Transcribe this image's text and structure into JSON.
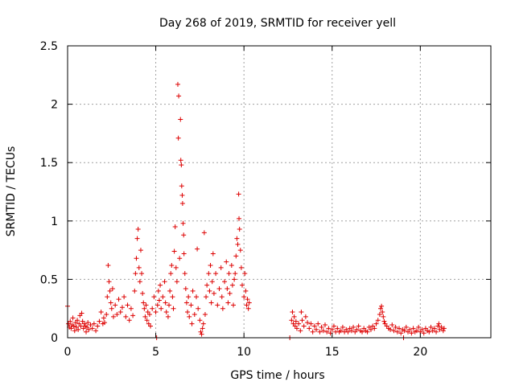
{
  "chart_data": {
    "type": "scatter",
    "title": "Day 268 of 2019, SRMTID for receiver yell",
    "xlabel": "GPS time / hours",
    "ylabel": "SRMTID / TECUs",
    "xlim": [
      0,
      24
    ],
    "ylim": [
      0,
      2.5
    ],
    "xticks": [
      0,
      5,
      10,
      15,
      20
    ],
    "yticks": [
      0,
      0.5,
      1,
      1.5,
      2,
      2.5
    ],
    "x_tick_labels": [
      "0",
      "5",
      "10",
      "15",
      "20"
    ],
    "y_tick_labels": [
      "0",
      "0.5",
      "1",
      "1.5",
      "2",
      "2.5"
    ],
    "grid": true,
    "marker": "+",
    "series": [
      {
        "name": "SRMTID",
        "color": "#dd0000",
        "points": [
          [
            0.0,
            0.27
          ],
          [
            0.05,
            0.12
          ],
          [
            0.1,
            0.09
          ],
          [
            0.15,
            0.14
          ],
          [
            0.2,
            0.08
          ],
          [
            0.25,
            0.11
          ],
          [
            0.3,
            0.17
          ],
          [
            0.35,
            0.1
          ],
          [
            0.4,
            0.06
          ],
          [
            0.45,
            0.13
          ],
          [
            0.5,
            0.09
          ],
          [
            0.55,
            0.15
          ],
          [
            0.6,
            0.07
          ],
          [
            0.65,
            0.12
          ],
          [
            0.7,
            0.19
          ],
          [
            0.75,
            0.1
          ],
          [
            0.8,
            0.21
          ],
          [
            0.85,
            0.14
          ],
          [
            0.9,
            0.08
          ],
          [
            0.95,
            0.12
          ],
          [
            1.0,
            0.1
          ],
          [
            1.05,
            0.05
          ],
          [
            1.1,
            0.09
          ],
          [
            1.15,
            0.13
          ],
          [
            1.2,
            0.07
          ],
          [
            1.3,
            0.11
          ],
          [
            1.4,
            0.08
          ],
          [
            1.5,
            0.12
          ],
          [
            1.6,
            0.06
          ],
          [
            1.7,
            0.1
          ],
          [
            1.8,
            0.14
          ],
          [
            1.9,
            0.22
          ],
          [
            2.0,
            0.12
          ],
          [
            2.05,
            0.17
          ],
          [
            2.1,
            0.13
          ],
          [
            2.2,
            0.2
          ],
          [
            2.25,
            0.35
          ],
          [
            2.3,
            0.62
          ],
          [
            2.35,
            0.48
          ],
          [
            2.4,
            0.4
          ],
          [
            2.45,
            0.3
          ],
          [
            2.5,
            0.25
          ],
          [
            2.55,
            0.42
          ],
          [
            2.6,
            0.18
          ],
          [
            2.7,
            0.28
          ],
          [
            2.8,
            0.2
          ],
          [
            2.9,
            0.33
          ],
          [
            3.0,
            0.22
          ],
          [
            3.1,
            0.26
          ],
          [
            3.2,
            0.35
          ],
          [
            3.3,
            0.18
          ],
          [
            3.4,
            0.28
          ],
          [
            3.5,
            0.15
          ],
          [
            3.6,
            0.25
          ],
          [
            3.7,
            0.19
          ],
          [
            3.8,
            0.4
          ],
          [
            3.85,
            0.55
          ],
          [
            3.9,
            0.68
          ],
          [
            3.95,
            0.85
          ],
          [
            4.0,
            0.93
          ],
          [
            4.05,
            0.6
          ],
          [
            4.1,
            0.48
          ],
          [
            4.15,
            0.75
          ],
          [
            4.2,
            0.55
          ],
          [
            4.25,
            0.38
          ],
          [
            4.3,
            0.3
          ],
          [
            4.35,
            0.25
          ],
          [
            4.4,
            0.18
          ],
          [
            4.45,
            0.28
          ],
          [
            4.5,
            0.15
          ],
          [
            4.55,
            0.22
          ],
          [
            4.6,
            0.12
          ],
          [
            4.65,
            0.2
          ],
          [
            4.7,
            0.1
          ],
          [
            4.8,
            0.25
          ],
          [
            4.9,
            0.35
          ],
          [
            5.0,
            0.22
          ],
          [
            5.05,
            0.0
          ],
          [
            5.1,
            0.28
          ],
          [
            5.15,
            0.4
          ],
          [
            5.2,
            0.32
          ],
          [
            5.25,
            0.45
          ],
          [
            5.3,
            0.25
          ],
          [
            5.4,
            0.35
          ],
          [
            5.5,
            0.48
          ],
          [
            5.55,
            0.3
          ],
          [
            5.6,
            0.22
          ],
          [
            5.7,
            0.18
          ],
          [
            5.75,
            0.28
          ],
          [
            5.8,
            0.4
          ],
          [
            5.85,
            0.55
          ],
          [
            5.9,
            0.62
          ],
          [
            5.95,
            0.35
          ],
          [
            6.0,
            0.25
          ],
          [
            6.05,
            0.74
          ],
          [
            6.1,
            0.95
          ],
          [
            6.15,
            0.6
          ],
          [
            6.2,
            0.48
          ],
          [
            6.25,
            2.17
          ],
          [
            6.3,
            2.07
          ],
          [
            6.28,
            1.71
          ],
          [
            6.35,
            0.68
          ],
          [
            6.4,
            1.87
          ],
          [
            6.42,
            1.52
          ],
          [
            6.45,
            1.48
          ],
          [
            6.47,
            1.3
          ],
          [
            6.5,
            1.22
          ],
          [
            6.52,
            1.15
          ],
          [
            6.55,
            0.98
          ],
          [
            6.58,
            0.88
          ],
          [
            6.6,
            0.72
          ],
          [
            6.65,
            0.55
          ],
          [
            6.7,
            0.42
          ],
          [
            6.75,
            0.3
          ],
          [
            6.8,
            0.22
          ],
          [
            6.85,
            0.35
          ],
          [
            6.9,
            0.18
          ],
          [
            7.0,
            0.28
          ],
          [
            7.05,
            0.12
          ],
          [
            7.1,
            0.4
          ],
          [
            7.2,
            0.2
          ],
          [
            7.3,
            0.35
          ],
          [
            7.35,
            0.76
          ],
          [
            7.4,
            0.25
          ],
          [
            7.5,
            0.15
          ],
          [
            7.55,
            0.05
          ],
          [
            7.6,
            0.03
          ],
          [
            7.65,
            0.08
          ],
          [
            7.7,
            0.12
          ],
          [
            7.75,
            0.9
          ],
          [
            7.8,
            0.2
          ],
          [
            7.85,
            0.35
          ],
          [
            7.9,
            0.45
          ],
          [
            8.0,
            0.55
          ],
          [
            8.05,
            0.4
          ],
          [
            8.1,
            0.62
          ],
          [
            8.15,
            0.3
          ],
          [
            8.2,
            0.48
          ],
          [
            8.25,
            0.72
          ],
          [
            8.3,
            0.38
          ],
          [
            8.4,
            0.55
          ],
          [
            8.5,
            0.28
          ],
          [
            8.6,
            0.42
          ],
          [
            8.7,
            0.6
          ],
          [
            8.75,
            0.35
          ],
          [
            8.8,
            0.25
          ],
          [
            8.9,
            0.48
          ],
          [
            9.0,
            0.65
          ],
          [
            9.05,
            0.42
          ],
          [
            9.1,
            0.3
          ],
          [
            9.15,
            0.55
          ],
          [
            9.2,
            0.38
          ],
          [
            9.3,
            0.62
          ],
          [
            9.35,
            0.45
          ],
          [
            9.4,
            0.28
          ],
          [
            9.45,
            0.5
          ],
          [
            9.5,
            0.55
          ],
          [
            9.55,
            0.7
          ],
          [
            9.6,
            0.85
          ],
          [
            9.65,
            0.8
          ],
          [
            9.7,
            1.23
          ],
          [
            9.72,
            1.02
          ],
          [
            9.75,
            0.93
          ],
          [
            9.8,
            0.75
          ],
          [
            9.85,
            0.6
          ],
          [
            9.9,
            0.45
          ],
          [
            10.0,
            0.35
          ],
          [
            10.05,
            0.55
          ],
          [
            10.1,
            0.4
          ],
          [
            10.15,
            0.28
          ],
          [
            10.2,
            0.33
          ],
          [
            10.25,
            0.25
          ],
          [
            10.3,
            0.3
          ],
          [
            12.6,
            0.0
          ],
          [
            12.7,
            0.15
          ],
          [
            12.75,
            0.22
          ],
          [
            12.8,
            0.12
          ],
          [
            12.85,
            0.18
          ],
          [
            12.9,
            0.1
          ],
          [
            12.95,
            0.14
          ],
          [
            13.0,
            0.08
          ],
          [
            13.1,
            0.12
          ],
          [
            13.2,
            0.06
          ],
          [
            13.25,
            0.22
          ],
          [
            13.3,
            0.15
          ],
          [
            13.4,
            0.1
          ],
          [
            13.5,
            0.18
          ],
          [
            13.6,
            0.13
          ],
          [
            13.7,
            0.08
          ],
          [
            13.8,
            0.12
          ],
          [
            13.9,
            0.05
          ],
          [
            14.0,
            0.1
          ],
          [
            14.1,
            0.07
          ],
          [
            14.2,
            0.12
          ],
          [
            14.3,
            0.05
          ],
          [
            14.4,
            0.09
          ],
          [
            14.5,
            0.06
          ],
          [
            14.6,
            0.11
          ],
          [
            14.7,
            0.05
          ],
          [
            14.8,
            0.08
          ],
          [
            14.9,
            0.04
          ],
          [
            15.0,
            0.07
          ],
          [
            15.1,
            0.1
          ],
          [
            15.2,
            0.05
          ],
          [
            15.3,
            0.08
          ],
          [
            15.4,
            0.05
          ],
          [
            15.5,
            0.06
          ],
          [
            15.6,
            0.09
          ],
          [
            15.7,
            0.05
          ],
          [
            15.8,
            0.07
          ],
          [
            15.9,
            0.05
          ],
          [
            16.0,
            0.08
          ],
          [
            16.1,
            0.06
          ],
          [
            16.2,
            0.09
          ],
          [
            16.3,
            0.05
          ],
          [
            16.4,
            0.07
          ],
          [
            16.5,
            0.1
          ],
          [
            16.6,
            0.06
          ],
          [
            16.7,
            0.05
          ],
          [
            16.8,
            0.08
          ],
          [
            16.9,
            0.06
          ],
          [
            17.0,
            0.05
          ],
          [
            17.1,
            0.09
          ],
          [
            17.2,
            0.07
          ],
          [
            17.3,
            0.1
          ],
          [
            17.4,
            0.08
          ],
          [
            17.5,
            0.12
          ],
          [
            17.6,
            0.15
          ],
          [
            17.7,
            0.2
          ],
          [
            17.75,
            0.25
          ],
          [
            17.8,
            0.27
          ],
          [
            17.85,
            0.22
          ],
          [
            17.9,
            0.18
          ],
          [
            17.95,
            0.14
          ],
          [
            18.0,
            0.12
          ],
          [
            18.1,
            0.1
          ],
          [
            18.2,
            0.08
          ],
          [
            18.3,
            0.07
          ],
          [
            18.4,
            0.11
          ],
          [
            18.5,
            0.06
          ],
          [
            18.6,
            0.09
          ],
          [
            18.7,
            0.05
          ],
          [
            18.8,
            0.08
          ],
          [
            18.9,
            0.04
          ],
          [
            19.0,
            0.07
          ],
          [
            19.05,
            0.0
          ],
          [
            19.1,
            0.06
          ],
          [
            19.2,
            0.09
          ],
          [
            19.3,
            0.05
          ],
          [
            19.4,
            0.07
          ],
          [
            19.5,
            0.04
          ],
          [
            19.6,
            0.08
          ],
          [
            19.7,
            0.05
          ],
          [
            19.8,
            0.06
          ],
          [
            19.9,
            0.09
          ],
          [
            20.0,
            0.05
          ],
          [
            20.1,
            0.07
          ],
          [
            20.2,
            0.04
          ],
          [
            20.3,
            0.08
          ],
          [
            20.4,
            0.06
          ],
          [
            20.5,
            0.05
          ],
          [
            20.6,
            0.09
          ],
          [
            20.7,
            0.06
          ],
          [
            20.8,
            0.08
          ],
          [
            20.9,
            0.05
          ],
          [
            21.0,
            0.1
          ],
          [
            21.05,
            0.12
          ],
          [
            21.1,
            0.07
          ],
          [
            21.2,
            0.09
          ],
          [
            21.3,
            0.06
          ],
          [
            21.35,
            0.08
          ]
        ]
      }
    ]
  }
}
